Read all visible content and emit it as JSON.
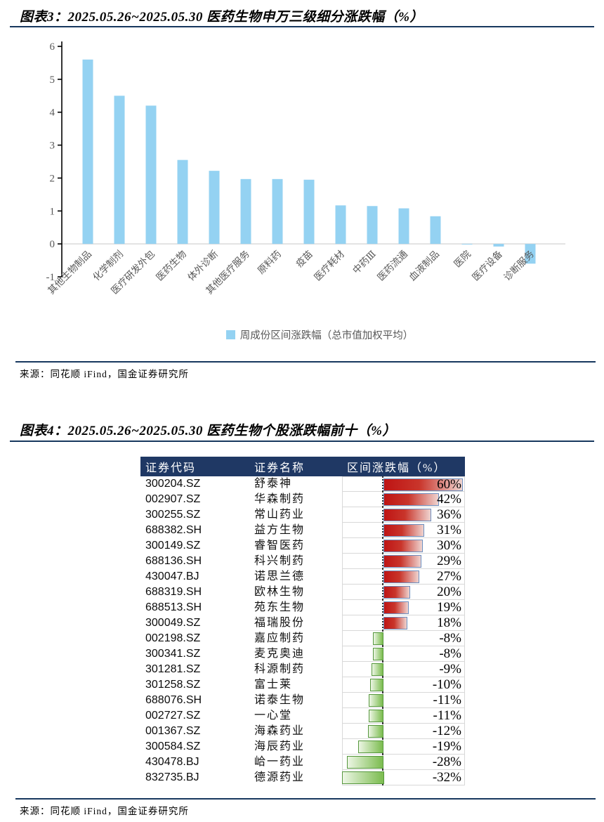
{
  "source_note": "来源：同花顺 iFind，国金证券研究所",
  "colors": {
    "bar_blue": "#94D2F2",
    "header_navy": "#1F3864",
    "rule_navy": "#17375E",
    "positive_red": "#C00000",
    "positive_border": "#6C8EBF",
    "negative_green": "#7FBE54",
    "negative_border": "#55973C",
    "axis_text": "#595959"
  },
  "chart_data": [
    {
      "type": "bar",
      "title": "图表3：2025.05.26~2025.05.30 医药生物申万三级细分涨跌幅（%）",
      "legend": [
        "周成份区间涨跌幅（总市值加权平均）"
      ],
      "legend_position": "bottom",
      "categories": [
        "其他生物制品",
        "化学制剂",
        "医疗研发外包",
        "医药生物",
        "体外诊断",
        "其他医疗服务",
        "原料药",
        "疫苗",
        "医疗耗材",
        "中药Ⅲ",
        "医药流通",
        "血液制品",
        "医院",
        "医疗设备",
        "诊断服务"
      ],
      "values": [
        5.6,
        4.5,
        4.2,
        2.55,
        2.22,
        1.97,
        1.97,
        1.95,
        1.17,
        1.15,
        1.08,
        0.84,
        -0.02,
        -0.08,
        -0.6
      ],
      "xlabel": "",
      "ylabel": "",
      "ylim": [
        -1,
        6
      ],
      "yticks": [
        -1,
        0,
        1,
        2,
        3,
        4,
        5,
        6
      ],
      "grid": false,
      "bar_color": "#94D2F2"
    },
    {
      "type": "table",
      "title": "图表4：2025.05.26~2025.05.30 医药生物个股涨跌幅前十（%）",
      "columns": [
        "证券代码",
        "证券名称",
        "区间涨跌幅（%）"
      ],
      "value_suffix": "%",
      "rows": [
        {
          "code": "300204.SZ",
          "name": "舒泰神",
          "value": 60
        },
        {
          "code": "002907.SZ",
          "name": "华森制药",
          "value": 42
        },
        {
          "code": "300255.SZ",
          "name": "常山药业",
          "value": 36
        },
        {
          "code": "688382.SH",
          "name": "益方生物",
          "value": 31
        },
        {
          "code": "300149.SZ",
          "name": "睿智医药",
          "value": 30
        },
        {
          "code": "688136.SH",
          "name": "科兴制药",
          "value": 29
        },
        {
          "code": "430047.BJ",
          "name": "诺思兰德",
          "value": 27
        },
        {
          "code": "688319.SH",
          "name": "欧林生物",
          "value": 20
        },
        {
          "code": "688513.SH",
          "name": "苑东生物",
          "value": 19
        },
        {
          "code": "300049.SZ",
          "name": "福瑞股份",
          "value": 18
        },
        {
          "code": "002198.SZ",
          "name": "嘉应制药",
          "value": -8
        },
        {
          "code": "300341.SZ",
          "name": "麦克奥迪",
          "value": -8
        },
        {
          "code": "301281.SZ",
          "name": "科源制药",
          "value": -9
        },
        {
          "code": "301258.SZ",
          "name": "富士莱",
          "value": -10
        },
        {
          "code": "688076.SH",
          "name": "诺泰生物",
          "value": -11
        },
        {
          "code": "002727.SZ",
          "name": "一心堂",
          "value": -11
        },
        {
          "code": "001367.SZ",
          "name": "海森药业",
          "value": -12
        },
        {
          "code": "300584.SZ",
          "name": "海辰药业",
          "value": -19
        },
        {
          "code": "430478.BJ",
          "name": "峆一药业",
          "value": -28
        },
        {
          "code": "832735.BJ",
          "name": "德源药业",
          "value": -32
        }
      ]
    }
  ]
}
